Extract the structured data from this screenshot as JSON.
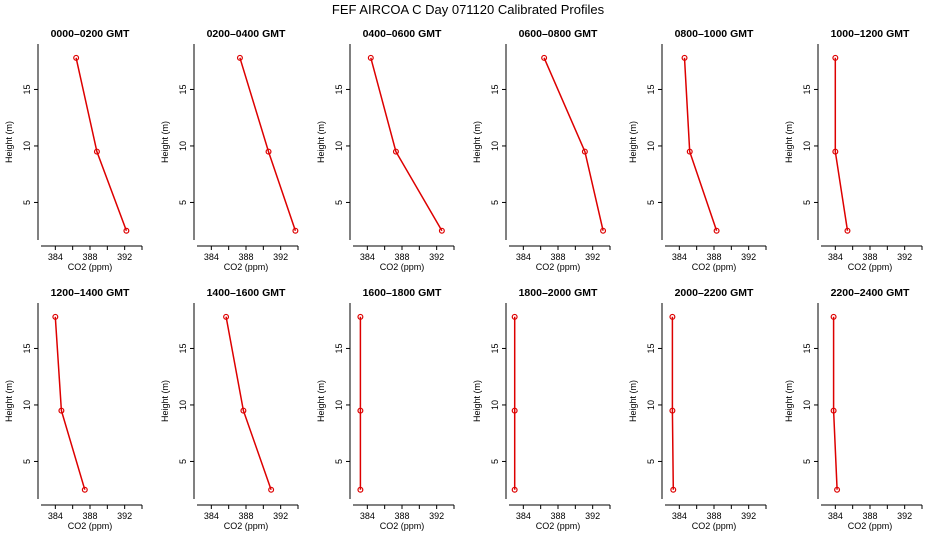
{
  "title": "FEF AIRCOA C  Day 071120  Calibrated Profiles",
  "colors": {
    "series": "#dd0000",
    "axis": "#000000",
    "background": "#ffffff"
  },
  "chart_data": [
    {
      "type": "line",
      "title": "0000–0200 GMT",
      "xlabel": "CO2 (ppm)",
      "ylabel": "Height (m)",
      "xlim": [
        382,
        394
      ],
      "ylim": [
        1.5,
        19.2
      ],
      "xticks": [
        384,
        388,
        392
      ],
      "yticks": [
        5,
        10,
        15
      ],
      "points": [
        {
          "x": 386.4,
          "y": 17.8
        },
        {
          "x": 388.8,
          "y": 9.5
        },
        {
          "x": 392.2,
          "y": 2.5
        }
      ]
    },
    {
      "type": "line",
      "title": "0200–0400 GMT",
      "xlabel": "CO2 (ppm)",
      "ylabel": "Height (m)",
      "xlim": [
        382,
        394
      ],
      "ylim": [
        1.5,
        19.2
      ],
      "xticks": [
        384,
        388,
        392
      ],
      "yticks": [
        5,
        10,
        15
      ],
      "points": [
        {
          "x": 387.3,
          "y": 17.8
        },
        {
          "x": 390.6,
          "y": 9.5
        },
        {
          "x": 393.7,
          "y": 2.5
        }
      ]
    },
    {
      "type": "line",
      "title": "0400–0600 GMT",
      "xlabel": "CO2 (ppm)",
      "ylabel": "Height (m)",
      "xlim": [
        382,
        394
      ],
      "ylim": [
        1.5,
        19.2
      ],
      "xticks": [
        384,
        388,
        392
      ],
      "yticks": [
        5,
        10,
        15
      ],
      "points": [
        {
          "x": 384.4,
          "y": 17.8
        },
        {
          "x": 387.3,
          "y": 9.5
        },
        {
          "x": 392.6,
          "y": 2.5
        }
      ]
    },
    {
      "type": "line",
      "title": "0600–0800 GMT",
      "xlabel": "CO2 (ppm)",
      "ylabel": "Height (m)",
      "xlim": [
        382,
        394
      ],
      "ylim": [
        1.5,
        19.2
      ],
      "xticks": [
        384,
        388,
        392
      ],
      "yticks": [
        5,
        10,
        15
      ],
      "points": [
        {
          "x": 386.4,
          "y": 17.8
        },
        {
          "x": 391.1,
          "y": 9.5
        },
        {
          "x": 393.2,
          "y": 2.5
        }
      ]
    },
    {
      "type": "line",
      "title": "0800–1000 GMT",
      "xlabel": "CO2 (ppm)",
      "ylabel": "Height (m)",
      "xlim": [
        382,
        394
      ],
      "ylim": [
        1.5,
        19.2
      ],
      "xticks": [
        384,
        388,
        392
      ],
      "yticks": [
        5,
        10,
        15
      ],
      "points": [
        {
          "x": 384.6,
          "y": 17.8
        },
        {
          "x": 385.2,
          "y": 9.5
        },
        {
          "x": 388.3,
          "y": 2.5
        }
      ]
    },
    {
      "type": "line",
      "title": "1000–1200 GMT",
      "xlabel": "CO2 (ppm)",
      "ylabel": "Height (m)",
      "xlim": [
        382,
        394
      ],
      "ylim": [
        1.5,
        19.2
      ],
      "xticks": [
        384,
        388,
        392
      ],
      "yticks": [
        5,
        10,
        15
      ],
      "points": [
        {
          "x": 384.0,
          "y": 17.8
        },
        {
          "x": 384.0,
          "y": 9.5
        },
        {
          "x": 385.4,
          "y": 2.5
        }
      ]
    },
    {
      "type": "line",
      "title": "1200–1400 GMT",
      "xlabel": "CO2 (ppm)",
      "ylabel": "Height (m)",
      "xlim": [
        382,
        394
      ],
      "ylim": [
        1.5,
        19.2
      ],
      "xticks": [
        384,
        388,
        392
      ],
      "yticks": [
        5,
        10,
        15
      ],
      "points": [
        {
          "x": 384.0,
          "y": 17.8
        },
        {
          "x": 384.7,
          "y": 9.5
        },
        {
          "x": 387.4,
          "y": 2.5
        }
      ]
    },
    {
      "type": "line",
      "title": "1400–1600 GMT",
      "xlabel": "CO2 (ppm)",
      "ylabel": "Height (m)",
      "xlim": [
        382,
        394
      ],
      "ylim": [
        1.5,
        19.2
      ],
      "xticks": [
        384,
        388,
        392
      ],
      "yticks": [
        5,
        10,
        15
      ],
      "points": [
        {
          "x": 385.7,
          "y": 17.8
        },
        {
          "x": 387.7,
          "y": 9.5
        },
        {
          "x": 390.9,
          "y": 2.5
        }
      ]
    },
    {
      "type": "line",
      "title": "1600–1800 GMT",
      "xlabel": "CO2 (ppm)",
      "ylabel": "Height (m)",
      "xlim": [
        382,
        394
      ],
      "ylim": [
        1.5,
        19.2
      ],
      "xticks": [
        384,
        388,
        392
      ],
      "yticks": [
        5,
        10,
        15
      ],
      "points": [
        {
          "x": 383.2,
          "y": 17.8
        },
        {
          "x": 383.2,
          "y": 9.5
        },
        {
          "x": 383.2,
          "y": 2.5
        }
      ]
    },
    {
      "type": "line",
      "title": "1800–2000 GMT",
      "xlabel": "CO2 (ppm)",
      "ylabel": "Height (m)",
      "xlim": [
        382,
        394
      ],
      "ylim": [
        1.5,
        19.2
      ],
      "xticks": [
        384,
        388,
        392
      ],
      "yticks": [
        5,
        10,
        15
      ],
      "points": [
        {
          "x": 383.0,
          "y": 17.8
        },
        {
          "x": 383.0,
          "y": 9.5
        },
        {
          "x": 383.0,
          "y": 2.5
        }
      ]
    },
    {
      "type": "line",
      "title": "2000–2200 GMT",
      "xlabel": "CO2 (ppm)",
      "ylabel": "Height (m)",
      "xlim": [
        382,
        394
      ],
      "ylim": [
        1.5,
        19.2
      ],
      "xticks": [
        384,
        388,
        392
      ],
      "yticks": [
        5,
        10,
        15
      ],
      "points": [
        {
          "x": 383.2,
          "y": 17.8
        },
        {
          "x": 383.2,
          "y": 9.5
        },
        {
          "x": 383.3,
          "y": 2.5
        }
      ]
    },
    {
      "type": "line",
      "title": "2200–2400 GMT",
      "xlabel": "CO2 (ppm)",
      "ylabel": "Height (m)",
      "xlim": [
        382,
        394
      ],
      "ylim": [
        1.5,
        19.2
      ],
      "xticks": [
        384,
        388,
        392
      ],
      "yticks": [
        5,
        10,
        15
      ],
      "points": [
        {
          "x": 383.8,
          "y": 17.8
        },
        {
          "x": 383.8,
          "y": 9.5
        },
        {
          "x": 384.2,
          "y": 2.5
        }
      ]
    }
  ]
}
